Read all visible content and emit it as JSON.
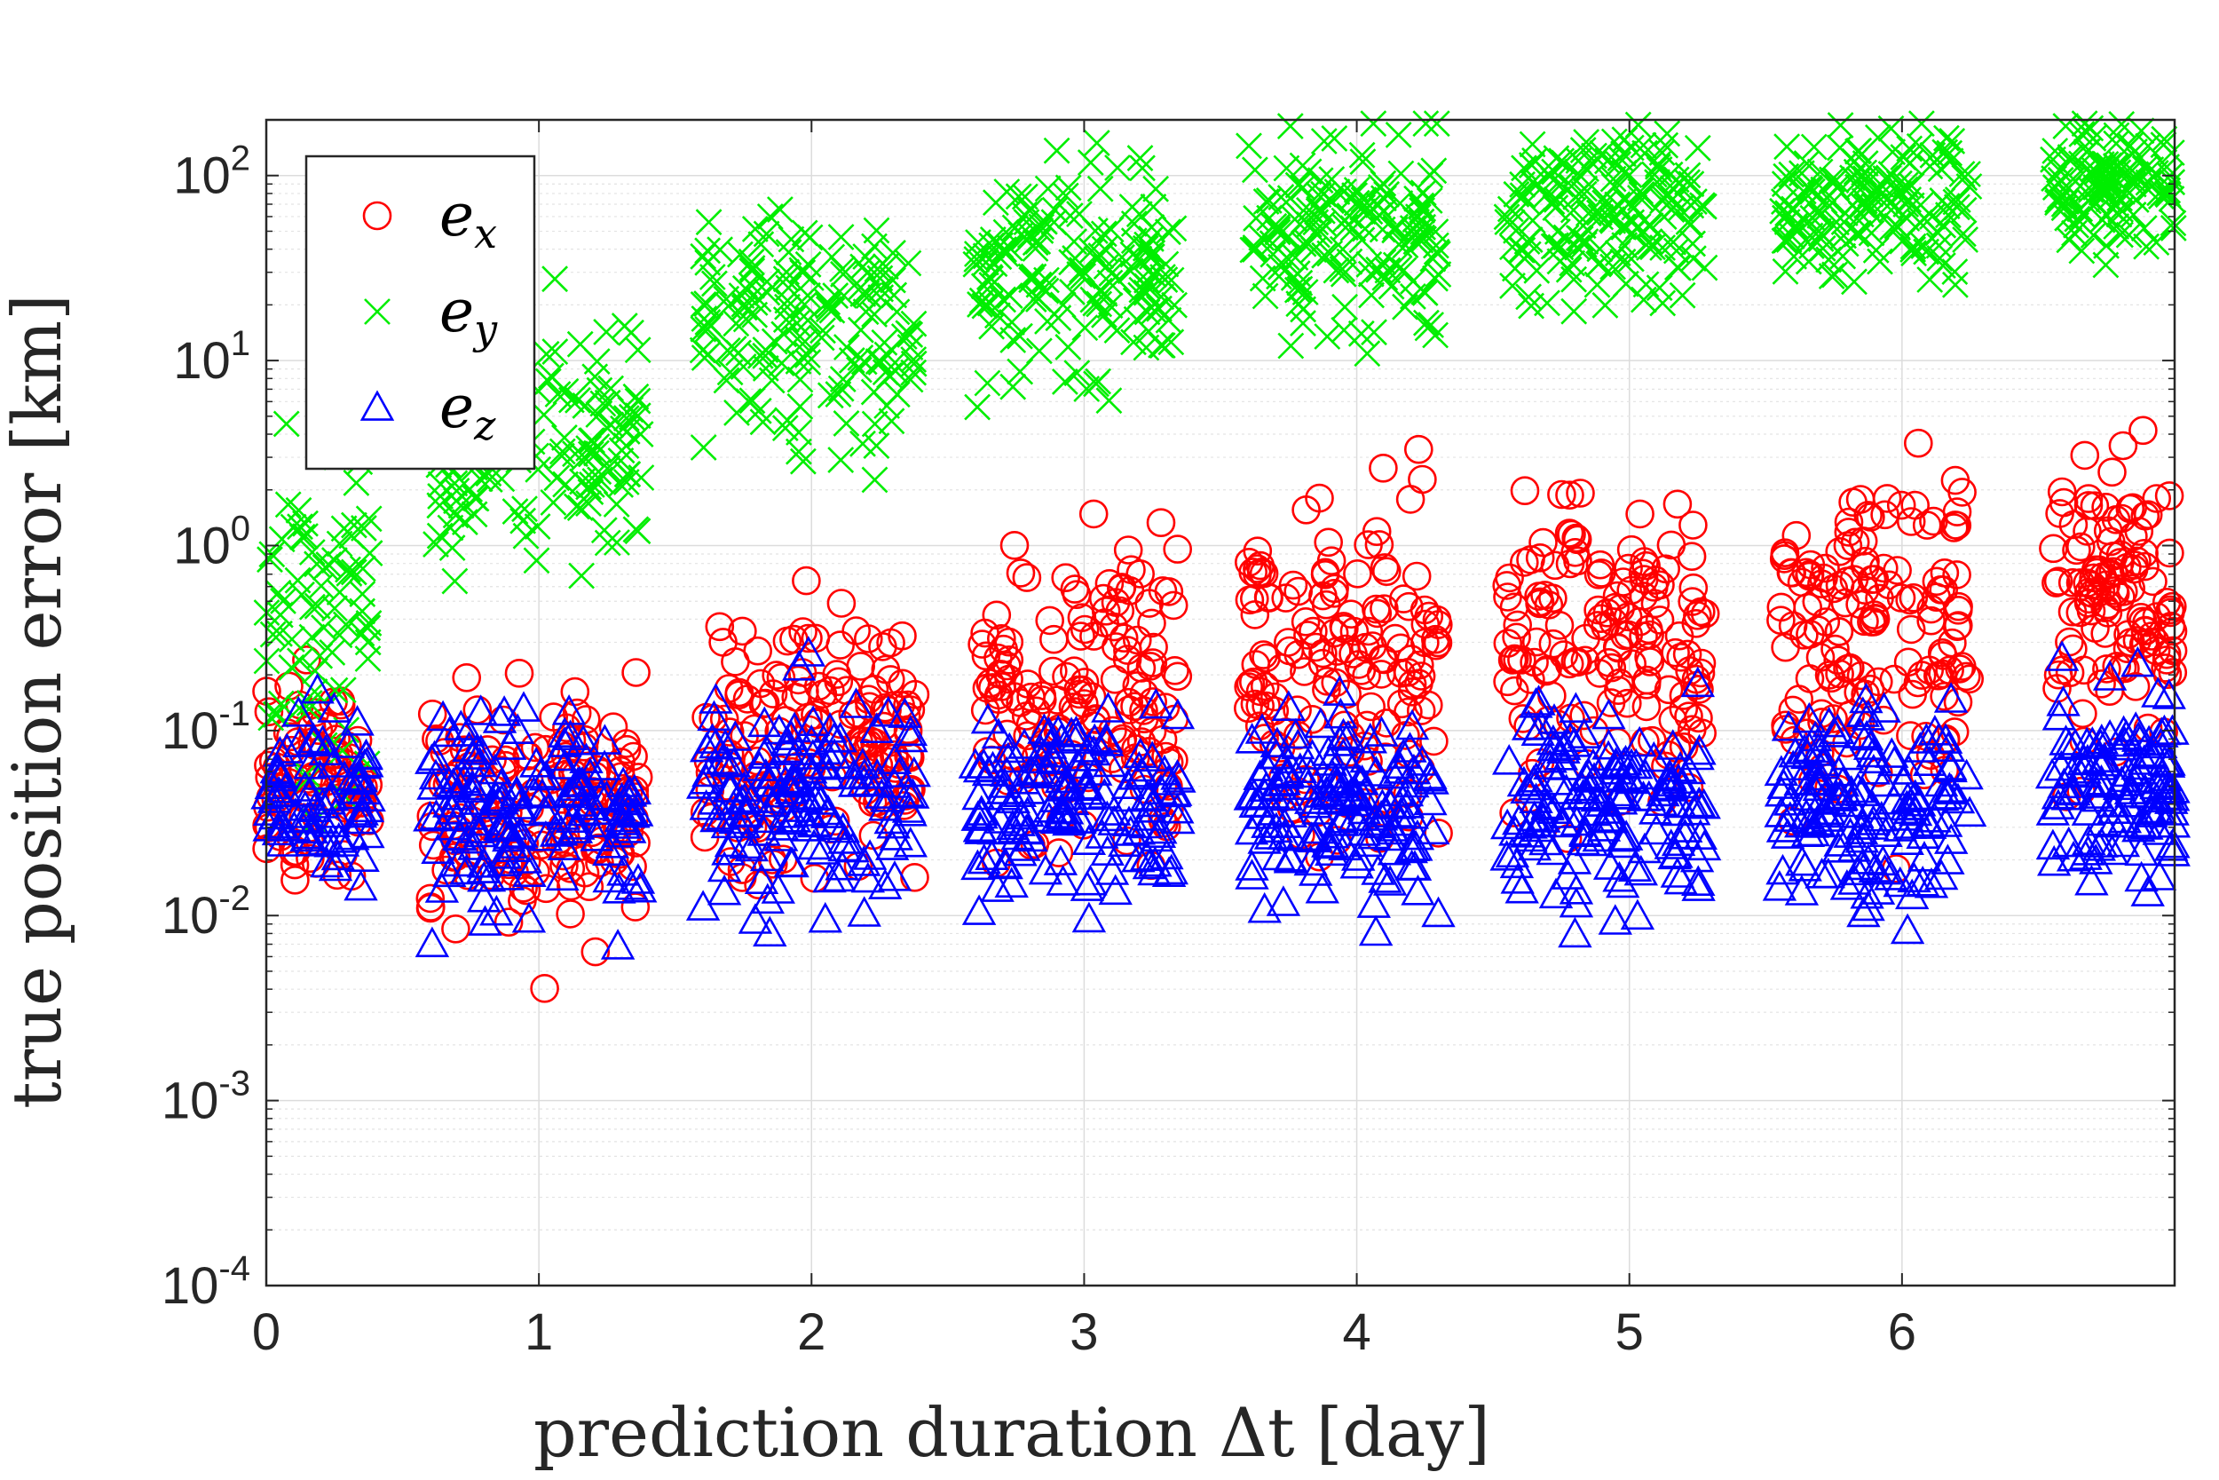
{
  "chart_data": {
    "type": "scatter",
    "title": "",
    "xlabel": "prediction duration Δt [day]",
    "ylabel": "true position error [km]",
    "xlim": [
      0,
      7
    ],
    "ylim": [
      0.0001,
      200
    ],
    "yscale": "log",
    "grid": true,
    "legend_position": "top-left",
    "x_ticks": [
      "0",
      "1",
      "2",
      "3",
      "4",
      "5",
      "6"
    ],
    "y_ticks": [
      {
        "base": "10",
        "exp": "-4"
      },
      {
        "base": "10",
        "exp": "-3"
      },
      {
        "base": "10",
        "exp": "-2"
      },
      {
        "base": "10",
        "exp": "-1"
      },
      {
        "base": "10",
        "exp": "0"
      },
      {
        "base": "10",
        "exp": "1"
      },
      {
        "base": "10",
        "exp": "2"
      }
    ],
    "series": [
      {
        "name": "e_x",
        "label": "e",
        "subscript": "x",
        "marker": "circle",
        "color": "#ff0000",
        "clusters": [
          {
            "x": [
              0.0,
              0.38
            ],
            "log_center": -1.3,
            "log_spread": 0.9,
            "count": 80
          },
          {
            "x": [
              0.6,
              1.38
            ],
            "log_center": -1.4,
            "log_spread": 1.0,
            "count": 150
          },
          {
            "x": [
              1.6,
              2.38
            ],
            "log_center": -1.1,
            "log_spread": 1.2,
            "count": 150
          },
          {
            "x": [
              2.6,
              3.35
            ],
            "log_center": -0.8,
            "log_spread": 1.3,
            "count": 150
          },
          {
            "x": [
              3.6,
              4.3
            ],
            "log_center": -0.6,
            "log_spread": 1.3,
            "count": 150
          },
          {
            "x": [
              4.55,
              5.28
            ],
            "log_center": -0.5,
            "log_spread": 1.3,
            "count": 150
          },
          {
            "x": [
              5.55,
              6.25
            ],
            "log_center": -0.4,
            "log_spread": 1.3,
            "count": 150
          },
          {
            "x": [
              6.55,
              7.0
            ],
            "log_center": -0.3,
            "log_spread": 1.2,
            "count": 120
          }
        ]
      },
      {
        "name": "e_y",
        "label": "e",
        "subscript": "y",
        "marker": "x",
        "color": "#00ee00",
        "clusters": [
          {
            "x": [
              0.0,
              0.38
            ],
            "log_center": -0.4,
            "log_spread": 1.3,
            "count": 80
          },
          {
            "x": [
              0.6,
              1.38
            ],
            "log_center": 0.6,
            "log_spread": 1.1,
            "count": 160
          },
          {
            "x": [
              1.6,
              2.38
            ],
            "log_center": 1.2,
            "log_spread": 1.0,
            "count": 160
          },
          {
            "x": [
              2.6,
              3.35
            ],
            "log_center": 1.5,
            "log_spread": 0.9,
            "count": 160
          },
          {
            "x": [
              3.6,
              4.3
            ],
            "log_center": 1.7,
            "log_spread": 0.8,
            "count": 160
          },
          {
            "x": [
              4.55,
              5.28
            ],
            "log_center": 1.8,
            "log_spread": 0.7,
            "count": 160
          },
          {
            "x": [
              5.55,
              6.25
            ],
            "log_center": 1.85,
            "log_spread": 0.6,
            "count": 150
          },
          {
            "x": [
              6.55,
              7.0
            ],
            "log_center": 1.95,
            "log_spread": 0.5,
            "count": 120
          }
        ]
      },
      {
        "name": "e_z",
        "label": "e",
        "subscript": "z",
        "marker": "triangle",
        "color": "#0000ff",
        "clusters": [
          {
            "x": [
              0.0,
              0.38
            ],
            "log_center": -1.3,
            "log_spread": 0.8,
            "count": 80
          },
          {
            "x": [
              0.6,
              1.38
            ],
            "log_center": -1.4,
            "log_spread": 0.8,
            "count": 150
          },
          {
            "x": [
              1.6,
              2.38
            ],
            "log_center": -1.4,
            "log_spread": 0.8,
            "count": 150
          },
          {
            "x": [
              2.6,
              3.35
            ],
            "log_center": -1.4,
            "log_spread": 0.8,
            "count": 150
          },
          {
            "x": [
              3.6,
              4.3
            ],
            "log_center": -1.4,
            "log_spread": 0.8,
            "count": 150
          },
          {
            "x": [
              4.55,
              5.28
            ],
            "log_center": -1.4,
            "log_spread": 0.8,
            "count": 150
          },
          {
            "x": [
              5.55,
              6.25
            ],
            "log_center": -1.4,
            "log_spread": 0.8,
            "count": 150
          },
          {
            "x": [
              6.55,
              7.0
            ],
            "log_center": -1.3,
            "log_spread": 0.8,
            "count": 120
          }
        ]
      }
    ]
  }
}
